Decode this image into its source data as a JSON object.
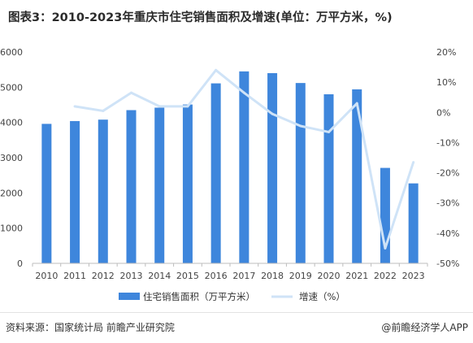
{
  "title": "图表3：2010-2023年重庆市住宅销售面积及增速(单位：万平方米，%)",
  "source": "资料来源：国家统计局 前瞻产业研究院",
  "credit": "@前瞻经济学人APP",
  "colors": {
    "bar": "#3e86dc",
    "line": "#cfe3f7"
  },
  "chart_data": {
    "type": "bar",
    "categories": [
      "2010",
      "2011",
      "2012",
      "2013",
      "2014",
      "2015",
      "2016",
      "2017",
      "2018",
      "2019",
      "2020",
      "2021",
      "2022",
      "2023"
    ],
    "series": [
      {
        "name": "住宅销售面积（万平方米）",
        "type": "bar",
        "axis": "left",
        "values": [
          3960,
          4040,
          4080,
          4350,
          4420,
          4510,
          5110,
          5450,
          5400,
          5120,
          4800,
          4940,
          2710,
          2270
        ]
      },
      {
        "name": "增速（%）",
        "type": "line",
        "axis": "right",
        "values": [
          null,
          2.0,
          0.5,
          6.5,
          2.0,
          2.0,
          14.0,
          6.5,
          -0.5,
          -4.5,
          -6.5,
          3.0,
          -45.0,
          -16.5
        ]
      }
    ],
    "left_axis": {
      "ylim": [
        0,
        6000
      ],
      "ticks": [
        "0",
        "1000",
        "2000",
        "3000",
        "4000",
        "5000",
        "6000"
      ]
    },
    "right_axis": {
      "ylim": [
        -50,
        20
      ],
      "ticks": [
        "-50%",
        "-40%",
        "-30%",
        "-20%",
        "-10%",
        "0%",
        "10%",
        "20%"
      ]
    },
    "legend_position": "bottom",
    "grid": false
  }
}
